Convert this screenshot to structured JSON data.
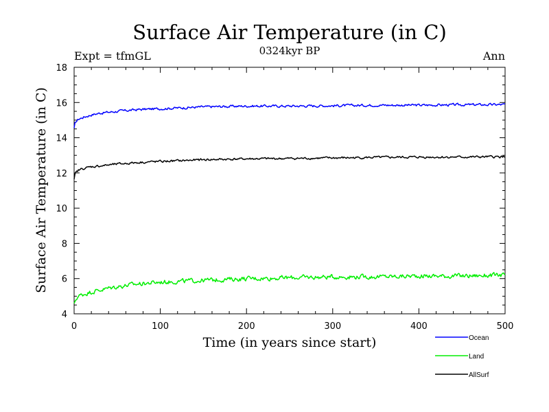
{
  "chart_data": {
    "type": "line",
    "title": "Surface Air Temperature (in C)",
    "subtitle": "0324kyr BP",
    "left_note": "Expt = tfmGL",
    "right_note": "Ann",
    "xlabel": "Time (in years since start)",
    "ylabel": "Surface Air Temperature (in C)",
    "xlim": [
      0,
      500
    ],
    "ylim": [
      4,
      18
    ],
    "xticks": [
      "0",
      "100",
      "200",
      "300",
      "400",
      "500"
    ],
    "yticks": [
      "4",
      "6",
      "8",
      "10",
      "12",
      "14",
      "16",
      "18"
    ],
    "grid": false,
    "legend_position": "bottom-right",
    "x": [
      0,
      1,
      2,
      3,
      5,
      10,
      20,
      30,
      40,
      50,
      75,
      100,
      150,
      200,
      250,
      300,
      350,
      400,
      450,
      500
    ],
    "series": [
      {
        "name": "Ocean",
        "color": "#0000ff",
        "values": [
          14.5,
          14.8,
          14.9,
          14.95,
          15.05,
          15.15,
          15.3,
          15.4,
          15.45,
          15.5,
          15.6,
          15.65,
          15.75,
          15.8,
          15.8,
          15.82,
          15.85,
          15.85,
          15.87,
          15.88
        ]
      },
      {
        "name": "Land",
        "color": "#00ee00",
        "values": [
          4.5,
          4.7,
          4.8,
          4.9,
          5.0,
          5.1,
          5.25,
          5.35,
          5.45,
          5.55,
          5.7,
          5.8,
          5.9,
          6.0,
          6.05,
          6.1,
          6.1,
          6.15,
          6.15,
          6.2
        ]
      },
      {
        "name": "AllSurf",
        "color": "#000000",
        "values": [
          11.6,
          11.9,
          12.0,
          12.05,
          12.15,
          12.25,
          12.35,
          12.4,
          12.45,
          12.5,
          12.6,
          12.65,
          12.75,
          12.8,
          12.82,
          12.85,
          12.88,
          12.9,
          12.9,
          12.92
        ]
      }
    ]
  }
}
